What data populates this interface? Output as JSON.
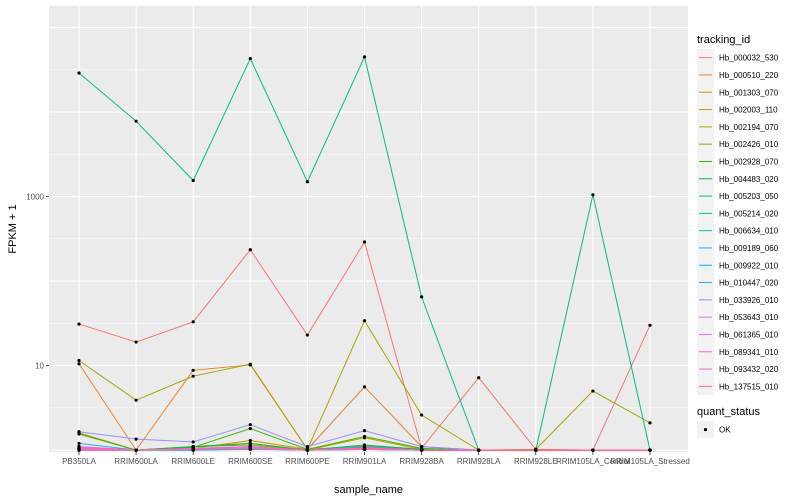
{
  "chart_data": {
    "type": "line",
    "title": "",
    "xlabel": "sample_name",
    "ylabel": "FPKM + 1",
    "yscale": "log10",
    "ylim": [
      0.95,
      180000
    ],
    "yticks": [
      {
        "value": 10,
        "label": "10"
      },
      {
        "value": 1000,
        "label": "1000"
      }
    ],
    "grid": true,
    "panel_background": "#ebebeb",
    "grid_color": "#ffffff",
    "categories": [
      "PB350LA",
      "RRIM600LA",
      "RRIM600LE",
      "RRIM600SE",
      "RRIM600PE",
      "RRIM901LA",
      "RRIM928BA",
      "RRIM928LA",
      "RRIM928LE",
      "RRIM105LA_Control",
      "RRIM105LA_Stressed"
    ],
    "legend": {
      "title": "tracking_id",
      "position": "right"
    },
    "legend2": {
      "title": "quant_status",
      "entries": [
        {
          "label": "OK"
        }
      ]
    },
    "series": [
      {
        "name": "Hb_000032_530",
        "color": "#F8766D",
        "values": [
          31,
          19,
          33,
          235,
          23,
          290,
          1.05,
          7.2,
          1.02,
          1.0,
          30
        ]
      },
      {
        "name": "Hb_000510_220",
        "color": "#EA8331",
        "values": [
          10.5,
          1.0,
          8.8,
          10.2,
          1.02,
          5.6,
          1.1,
          1.0,
          1.02,
          1.0,
          1.0
        ]
      },
      {
        "name": "Hb_001303_070",
        "color": "#D89000",
        "values": [
          1.0,
          1.0,
          1.05,
          1.3,
          1.02,
          1.12,
          1.02,
          1.0,
          1.0,
          1.0,
          1.0
        ]
      },
      {
        "name": "Hb_002003_110",
        "color": "#C09B00",
        "values": [
          1.6,
          1.0,
          1.1,
          1.2,
          1.0,
          1.4,
          1.02,
          1.0,
          1.0,
          1.0,
          1.0
        ]
      },
      {
        "name": "Hb_002194_070",
        "color": "#A3A500",
        "values": [
          11.5,
          3.9,
          7.5,
          10.4,
          1.02,
          34,
          2.6,
          1.0,
          1.02,
          5.0,
          2.1
        ]
      },
      {
        "name": "Hb_002426_010",
        "color": "#7CAE00",
        "values": [
          1.1,
          1.0,
          1.1,
          1.15,
          1.0,
          1.08,
          1.02,
          1.0,
          1.0,
          1.0,
          1.0
        ]
      },
      {
        "name": "Hb_002928_070",
        "color": "#39B600",
        "values": [
          1.55,
          1.0,
          1.08,
          1.8,
          1.02,
          1.45,
          1.05,
          1.0,
          1.0,
          1.0,
          1.0
        ]
      },
      {
        "name": "Hb_004483_020",
        "color": "#00BB4E",
        "values": [
          1.05,
          1.0,
          1.1,
          1.2,
          1.0,
          1.15,
          1.02,
          1.0,
          1.0,
          1.0,
          1.0
        ]
      },
      {
        "name": "Hb_005203_050",
        "color": "#00BF7D",
        "values": [
          29000,
          7800,
          1550,
          43000,
          1500,
          45000,
          65,
          1.0,
          1.0,
          1050,
          1.0
        ]
      },
      {
        "name": "Hb_005214_020",
        "color": "#00C1A3",
        "values": [
          1.02,
          1.0,
          1.02,
          1.05,
          1.0,
          1.03,
          1.0,
          1.0,
          1.0,
          1.0,
          1.0
        ]
      },
      {
        "name": "Hb_006634_010",
        "color": "#00BFC4",
        "values": [
          1.0,
          1.0,
          1.0,
          1.02,
          1.0,
          1.02,
          1.0,
          1.0,
          1.0,
          1.0,
          1.0
        ]
      },
      {
        "name": "Hb_009189_060",
        "color": "#00BAE0",
        "values": [
          1.0,
          1.0,
          1.0,
          1.03,
          1.0,
          1.02,
          1.0,
          1.0,
          1.0,
          1.0,
          1.0
        ]
      },
      {
        "name": "Hb_009922_010",
        "color": "#00B0F6",
        "values": [
          1.02,
          1.0,
          1.0,
          1.04,
          1.0,
          1.02,
          1.0,
          1.0,
          1.0,
          1.0,
          1.0
        ]
      },
      {
        "name": "Hb_010447_020",
        "color": "#35A2FF",
        "values": [
          1.2,
          1.0,
          1.05,
          1.1,
          1.0,
          1.1,
          1.0,
          1.0,
          1.0,
          1.0,
          1.0
        ]
      },
      {
        "name": "Hb_033926_010",
        "color": "#9590FF",
        "values": [
          1.65,
          1.35,
          1.25,
          2.0,
          1.1,
          1.7,
          1.1,
          1.0,
          1.0,
          1.0,
          1.0
        ]
      },
      {
        "name": "Hb_053643_010",
        "color": "#C77CFF",
        "values": [
          1.1,
          1.0,
          1.05,
          1.1,
          1.0,
          1.05,
          1.0,
          1.0,
          1.0,
          1.0,
          1.0
        ]
      },
      {
        "name": "Hb_061365_010",
        "color": "#E76BF3",
        "values": [
          1.05,
          1.0,
          1.03,
          1.08,
          1.0,
          1.04,
          1.0,
          1.0,
          1.0,
          1.0,
          1.0
        ]
      },
      {
        "name": "Hb_089341_010",
        "color": "#FA62DB",
        "values": [
          1.03,
          1.0,
          1.02,
          1.05,
          1.0,
          1.03,
          1.0,
          1.0,
          1.0,
          1.0,
          1.0
        ]
      },
      {
        "name": "Hb_093432_020",
        "color": "#FF62BC",
        "values": [
          1.08,
          1.0,
          1.04,
          1.1,
          1.0,
          1.06,
          1.0,
          1.0,
          1.0,
          1.0,
          1.0
        ]
      },
      {
        "name": "Hb_137515_010",
        "color": "#FF6C91",
        "values": [
          1.0,
          1.0,
          1.02,
          1.04,
          1.0,
          1.02,
          1.0,
          1.0,
          1.0,
          1.0,
          1.0
        ]
      }
    ]
  }
}
